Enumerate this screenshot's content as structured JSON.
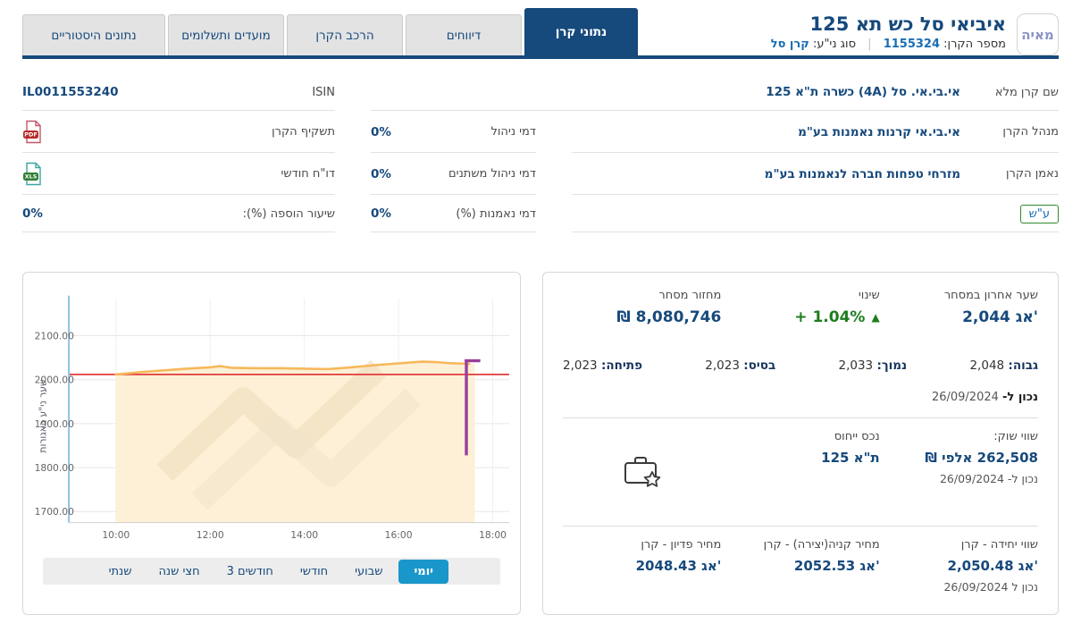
{
  "colors": {
    "navy": "#16497c",
    "link_blue": "#1a6db5",
    "green": "#1e7d1e",
    "active_period_blue": "#1a97ca",
    "red_reference_line": "#e23b3b",
    "orange_series": "#f6b85a",
    "purple_marker": "#9a3e9c"
  },
  "header": {
    "logo_text": "מאיה",
    "title": "איביאי סל כש תא 125",
    "fund_number_label": "מספר הקרן:",
    "fund_number": "1155324",
    "divider": "|",
    "security_type_label": "סוג ני\"ע:",
    "security_type": "קרן סל"
  },
  "tabs": [
    {
      "label": "נתוני קרן",
      "active": true
    },
    {
      "label": "דיווחים",
      "active": false
    },
    {
      "label": "הרכב הקרן",
      "active": false
    },
    {
      "label": "מועדים ותשלומים",
      "active": false
    },
    {
      "label": "נתונים היסטוריים",
      "active": false
    }
  ],
  "details": {
    "full_name": {
      "label": "שם קרן מלא",
      "value": "אי.בי.אי. סל (4A) כשרה ת\"א 125"
    },
    "isin": {
      "label": "ISIN",
      "value": "IL0011553240"
    },
    "manager": {
      "label": "מנהל הקרן",
      "value": "אי.בי.אי קרנות נאמנות בע\"מ"
    },
    "mgmt_fee": {
      "label": "דמי ניהול",
      "value": "0%"
    },
    "prospectus": {
      "label": "תשקיף הקרן",
      "icon_text": "PDF"
    },
    "trustee": {
      "label": "נאמן הקרן",
      "value": "מזרחי טפחות חברה לנאמנות בע\"מ"
    },
    "variable_fee": {
      "label": "דמי ניהול משתנים",
      "value": "0%"
    },
    "monthly_report": {
      "label": "דו\"ח חודשי",
      "icon_text": "XLS"
    },
    "registered_badge": "ע\"ש",
    "trustee_fee": {
      "label": "דמי נאמנות (%)",
      "value": "0%"
    },
    "addition_rate": {
      "label": "שיעור הוספה (%):",
      "value": "0%"
    }
  },
  "market": {
    "last_price": {
      "label": "שער אחרון במסחר",
      "value": "2,044 אג'"
    },
    "change": {
      "label": "שינוי",
      "value": "+ 1.04%",
      "arrow": "▲"
    },
    "volume": {
      "label": "מחזור מסחר",
      "value": "8,080,746 ₪"
    },
    "high": {
      "label": "גבוה:",
      "value": "2,048"
    },
    "low": {
      "label": "נמוך:",
      "value": "2,033"
    },
    "base": {
      "label": "בסיס:",
      "value": "2,023"
    },
    "open": {
      "label": "פתיחה:",
      "value": "2,023"
    },
    "as_of": {
      "label": "נכון ל-",
      "date": "26/09/2024"
    },
    "market_cap": {
      "label": "שווי שוק:",
      "value": "262,508 אלפי ₪",
      "as_of": "נכון ל- 26/09/2024"
    },
    "reference_asset": {
      "label": "נכס ייחוס",
      "value": "ת\"א 125"
    },
    "unit_value": {
      "label": "שווי יחידה - קרן",
      "value": "2,050.48 אג'",
      "as_of": "נכון ל 26/09/2024"
    },
    "creation_price": {
      "label": "מחיר קניה(יצירה) - קרן",
      "value": "2052.53 אג'"
    },
    "redemption_price": {
      "label": "מחיר פדיון - קרן",
      "value": "2048.43 אג'"
    }
  },
  "chart": {
    "periods": [
      {
        "label": "יומי",
        "active": true
      },
      {
        "label": "שבועי",
        "active": false
      },
      {
        "label": "חודשי",
        "active": false
      },
      {
        "label": "3 חודשים",
        "active": false
      },
      {
        "label": "חצי שנה",
        "active": false
      },
      {
        "label": "שנתי",
        "active": false
      }
    ]
  },
  "chart_data": {
    "type": "area",
    "title": "",
    "xlabel": "",
    "ylabel": "שער ני\"ע באגורות",
    "grid": true,
    "legend": false,
    "xlim_hours": [
      9.0,
      18.35
    ],
    "ylim": [
      1675,
      2185
    ],
    "x_ticks": [
      {
        "hour": 10,
        "label": "10:00"
      },
      {
        "hour": 12,
        "label": "12:00"
      },
      {
        "hour": 14,
        "label": "14:00"
      },
      {
        "hour": 16,
        "label": "16:00"
      },
      {
        "hour": 18,
        "label": "18:00"
      }
    ],
    "y_ticks": [
      {
        "value": 2100,
        "label": "2100.00"
      },
      {
        "value": 2000,
        "label": "2000.00"
      },
      {
        "value": 1900,
        "label": "1900.00"
      },
      {
        "value": 1800,
        "label": "1800.00"
      },
      {
        "value": 1700,
        "label": "1700.00"
      }
    ],
    "series": [
      {
        "name": "שער ני\"ע",
        "color": "#f6b85a",
        "fill": "#fdf0d6",
        "points": [
          [
            10.0,
            2012
          ],
          [
            10.5,
            2017
          ],
          [
            11.0,
            2021
          ],
          [
            11.5,
            2025
          ],
          [
            12.0,
            2028
          ],
          [
            12.2,
            2031
          ],
          [
            12.45,
            2027
          ],
          [
            13.0,
            2026
          ],
          [
            13.5,
            2026
          ],
          [
            14.0,
            2025
          ],
          [
            14.5,
            2024
          ],
          [
            15.0,
            2028
          ],
          [
            15.5,
            2033
          ],
          [
            16.0,
            2037
          ],
          [
            16.5,
            2041
          ],
          [
            16.8,
            2040
          ],
          [
            17.0,
            2038
          ],
          [
            17.2,
            2037
          ],
          [
            17.5,
            2036
          ]
        ]
      }
    ],
    "area_end_hour": 17.62,
    "reference_line": {
      "value": 2012,
      "color": "#e23b3b"
    },
    "closing_auction_marker": {
      "hour": 17.44,
      "high": 2040,
      "low": 1828,
      "color": "#9a3e9c"
    }
  }
}
